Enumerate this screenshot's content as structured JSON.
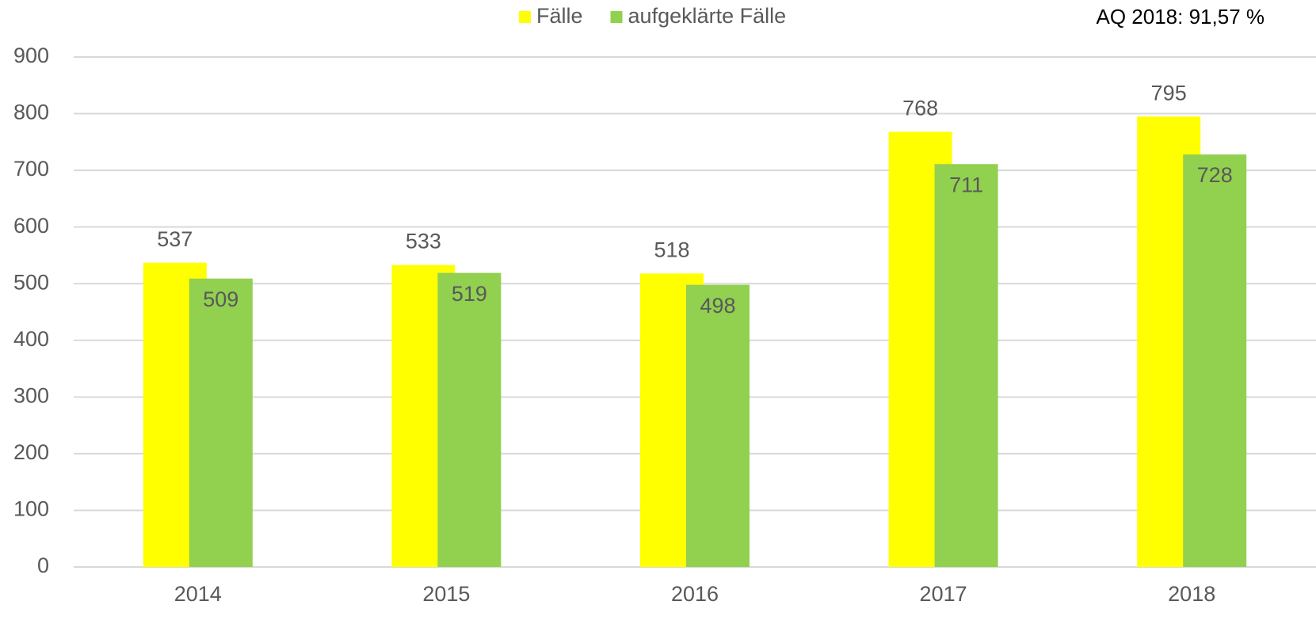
{
  "chart_data": {
    "type": "bar",
    "annotation": "AQ 2018: 91,57 %",
    "categories": [
      "2014",
      "2015",
      "2016",
      "2017",
      "2018"
    ],
    "series": [
      {
        "name": "Fälle",
        "color": "#ffff00",
        "values": [
          537,
          533,
          518,
          768,
          795
        ]
      },
      {
        "name": "aufgeklärte Fälle",
        "color": "#92d050",
        "values": [
          509,
          519,
          498,
          711,
          728
        ]
      }
    ],
    "ylim": [
      0,
      900
    ],
    "yticks": [
      0,
      100,
      200,
      300,
      400,
      500,
      600,
      700,
      800,
      900
    ],
    "grid": true,
    "legend": "top"
  }
}
